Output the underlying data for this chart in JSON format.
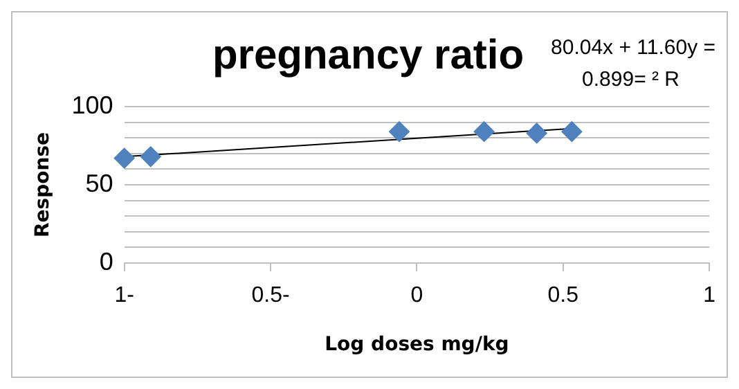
{
  "chart_data": {
    "type": "scatter",
    "title": "pregnancy ratio",
    "xlabel": "Log doses mg/kg",
    "ylabel": "Response",
    "annotations": [
      "80.04x + 11.60y =",
      "0.899= ² R"
    ],
    "series": [
      {
        "color": "#4f81bd",
        "marker": "diamond",
        "x": [
          -1,
          -0.91,
          -0.06,
          0.23,
          0.41,
          0.53
        ],
        "values": [
          67,
          68,
          84,
          84,
          83,
          84
        ]
      },
      {
        "type": "line",
        "color": "#000000",
        "marker": "none",
        "x": [
          -1,
          0.53
        ],
        "values": [
          68,
          86
        ]
      }
    ],
    "xlim": [
      -1,
      1
    ],
    "xticks": [
      {
        "value": -1,
        "label": "1-"
      },
      {
        "value": -0.5,
        "label": "0.5-"
      },
      0,
      0.5,
      1
    ],
    "ylim": [
      0,
      100
    ],
    "yticks": [
      0,
      {
        "value": 10,
        "label": null
      },
      {
        "value": 20,
        "label": null
      },
      {
        "value": 30,
        "label": null
      },
      {
        "value": 40,
        "label": null
      },
      50,
      {
        "value": 60,
        "label": null
      },
      {
        "value": 70,
        "label": null
      },
      {
        "value": 80,
        "label": null
      },
      {
        "value": 90,
        "label": null
      },
      100
    ],
    "grid": "y"
  }
}
